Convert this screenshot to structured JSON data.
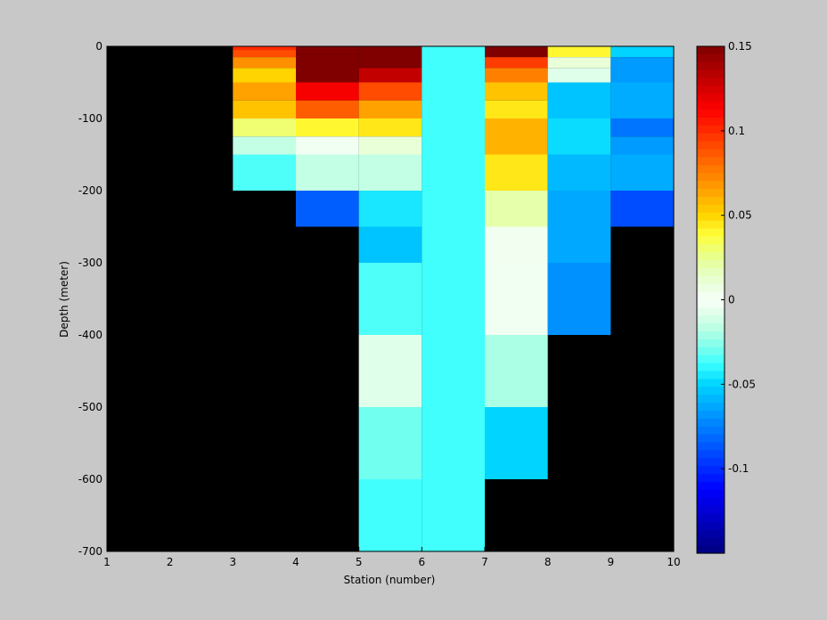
{
  "chart_data": {
    "type": "heatmap",
    "xlabel": "Station (number)",
    "ylabel": "Depth (meter)",
    "xlim": [
      1,
      10
    ],
    "ylim": [
      -700,
      0
    ],
    "xticks": [
      1,
      2,
      3,
      4,
      5,
      6,
      7,
      8,
      9,
      10
    ],
    "yticks": [
      0,
      -100,
      -200,
      -300,
      -400,
      -500,
      -600,
      -700
    ],
    "background_color": "#000000",
    "colormap": "jet",
    "clim": [
      -0.15,
      0.15
    ],
    "colorbar": {
      "location": "right",
      "ticks": [
        0.15,
        0.1,
        0.05,
        0,
        -0.05,
        -0.1
      ],
      "tick_labels": [
        "0.15",
        "0.1",
        "0.05",
        "0",
        "-0.05",
        "-0.1"
      ]
    },
    "cells": [
      {
        "x0": 3,
        "x1": 4,
        "y0": -5,
        "y1": 0,
        "value": 0.1
      },
      {
        "x0": 3,
        "x1": 4,
        "y0": -15,
        "y1": -5,
        "value": 0.09
      },
      {
        "x0": 3,
        "x1": 4,
        "y0": -30,
        "y1": -15,
        "value": 0.07
      },
      {
        "x0": 3,
        "x1": 4,
        "y0": -50,
        "y1": -30,
        "value": 0.05
      },
      {
        "x0": 3,
        "x1": 4,
        "y0": -75,
        "y1": -50,
        "value": 0.065
      },
      {
        "x0": 3,
        "x1": 4,
        "y0": -100,
        "y1": -75,
        "value": 0.055
      },
      {
        "x0": 3,
        "x1": 4,
        "y0": -125,
        "y1": -100,
        "value": 0.03
      },
      {
        "x0": 3,
        "x1": 4,
        "y0": -150,
        "y1": -125,
        "value": -0.015
      },
      {
        "x0": 3,
        "x1": 4,
        "y0": -200,
        "y1": -150,
        "value": -0.035
      },
      {
        "x0": 4,
        "x1": 5,
        "y0": -10,
        "y1": 0,
        "value": 0.15
      },
      {
        "x0": 4,
        "x1": 5,
        "y0": -50,
        "y1": -10,
        "value": 0.15
      },
      {
        "x0": 4,
        "x1": 5,
        "y0": -75,
        "y1": -50,
        "value": 0.115
      },
      {
        "x0": 4,
        "x1": 5,
        "y0": -100,
        "y1": -75,
        "value": 0.085
      },
      {
        "x0": 4,
        "x1": 5,
        "y0": -125,
        "y1": -100,
        "value": 0.04
      },
      {
        "x0": 4,
        "x1": 5,
        "y0": -150,
        "y1": -125,
        "value": -0.003
      },
      {
        "x0": 4,
        "x1": 5,
        "y0": -200,
        "y1": -150,
        "value": -0.015
      },
      {
        "x0": 4,
        "x1": 5,
        "y0": -250,
        "y1": -200,
        "value": -0.085
      },
      {
        "x0": 5,
        "x1": 6,
        "y0": -30,
        "y1": 0,
        "value": 0.15
      },
      {
        "x0": 5,
        "x1": 6,
        "y0": -50,
        "y1": -30,
        "value": 0.13
      },
      {
        "x0": 5,
        "x1": 6,
        "y0": -75,
        "y1": -50,
        "value": 0.09
      },
      {
        "x0": 5,
        "x1": 6,
        "y0": -100,
        "y1": -75,
        "value": 0.065
      },
      {
        "x0": 5,
        "x1": 6,
        "y0": -125,
        "y1": -100,
        "value": 0.045
      },
      {
        "x0": 5,
        "x1": 6,
        "y0": -150,
        "y1": -125,
        "value": 0.01
      },
      {
        "x0": 5,
        "x1": 6,
        "y0": -200,
        "y1": -150,
        "value": -0.015
      },
      {
        "x0": 5,
        "x1": 6,
        "y0": -250,
        "y1": -200,
        "value": -0.045
      },
      {
        "x0": 5,
        "x1": 6,
        "y0": -300,
        "y1": -250,
        "value": -0.055
      },
      {
        "x0": 5,
        "x1": 6,
        "y0": -400,
        "y1": -300,
        "value": -0.035
      },
      {
        "x0": 5,
        "x1": 6,
        "y0": -500,
        "y1": -400,
        "value": -0.008
      },
      {
        "x0": 5,
        "x1": 6,
        "y0": -600,
        "y1": -500,
        "value": -0.03
      },
      {
        "x0": 5,
        "x1": 6,
        "y0": -700,
        "y1": -600,
        "value": -0.037
      },
      {
        "x0": 6,
        "x1": 7,
        "y0": -700,
        "y1": 0,
        "value": -0.037
      },
      {
        "x0": 7,
        "x1": 8,
        "y0": -15,
        "y1": 0,
        "value": 0.15
      },
      {
        "x0": 7,
        "x1": 8,
        "y0": -30,
        "y1": -15,
        "value": 0.095
      },
      {
        "x0": 7,
        "x1": 8,
        "y0": -50,
        "y1": -30,
        "value": 0.075
      },
      {
        "x0": 7,
        "x1": 8,
        "y0": -75,
        "y1": -50,
        "value": 0.055
      },
      {
        "x0": 7,
        "x1": 8,
        "y0": -100,
        "y1": -75,
        "value": 0.045
      },
      {
        "x0": 7,
        "x1": 8,
        "y0": -150,
        "y1": -100,
        "value": 0.06
      },
      {
        "x0": 7,
        "x1": 8,
        "y0": -200,
        "y1": -150,
        "value": 0.045
      },
      {
        "x0": 7,
        "x1": 8,
        "y0": -250,
        "y1": -200,
        "value": 0.02
      },
      {
        "x0": 7,
        "x1": 8,
        "y0": -300,
        "y1": -250,
        "value": 0.003
      },
      {
        "x0": 7,
        "x1": 8,
        "y0": -400,
        "y1": -300,
        "value": -0.003
      },
      {
        "x0": 7,
        "x1": 8,
        "y0": -500,
        "y1": -400,
        "value": -0.02
      },
      {
        "x0": 7,
        "x1": 8,
        "y0": -600,
        "y1": -500,
        "value": -0.05
      },
      {
        "x0": 8,
        "x1": 9,
        "y0": -15,
        "y1": 0,
        "value": 0.04
      },
      {
        "x0": 8,
        "x1": 9,
        "y0": -30,
        "y1": -15,
        "value": 0.01
      },
      {
        "x0": 8,
        "x1": 9,
        "y0": -50,
        "y1": -30,
        "value": -0.008
      },
      {
        "x0": 8,
        "x1": 9,
        "y0": -100,
        "y1": -50,
        "value": -0.055
      },
      {
        "x0": 8,
        "x1": 9,
        "y0": -150,
        "y1": -100,
        "value": -0.048
      },
      {
        "x0": 8,
        "x1": 9,
        "y0": -200,
        "y1": -150,
        "value": -0.058
      },
      {
        "x0": 8,
        "x1": 9,
        "y0": -300,
        "y1": -200,
        "value": -0.063
      },
      {
        "x0": 8,
        "x1": 9,
        "y0": -400,
        "y1": -300,
        "value": -0.07
      },
      {
        "x0": 9,
        "x1": 10,
        "y0": -15,
        "y1": 0,
        "value": -0.05
      },
      {
        "x0": 9,
        "x1": 10,
        "y0": -50,
        "y1": -15,
        "value": -0.067
      },
      {
        "x0": 9,
        "x1": 10,
        "y0": -100,
        "y1": -50,
        "value": -0.062
      },
      {
        "x0": 9,
        "x1": 10,
        "y0": -125,
        "y1": -100,
        "value": -0.078
      },
      {
        "x0": 9,
        "x1": 10,
        "y0": -150,
        "y1": -125,
        "value": -0.067
      },
      {
        "x0": 9,
        "x1": 10,
        "y0": -200,
        "y1": -150,
        "value": -0.062
      },
      {
        "x0": 9,
        "x1": 10,
        "y0": -250,
        "y1": -200,
        "value": -0.09
      }
    ]
  }
}
